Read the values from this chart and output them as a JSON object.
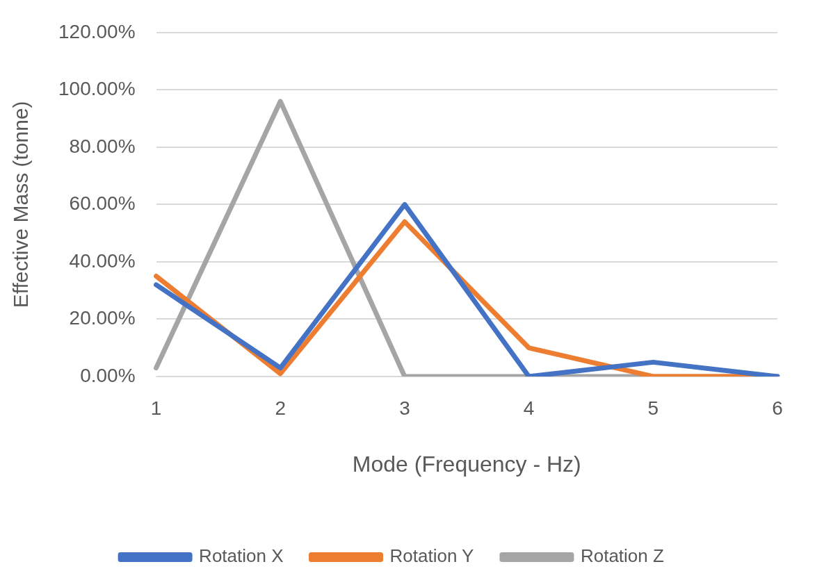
{
  "chart_data": {
    "type": "line",
    "xlabel": "Mode (Frequency - Hz)",
    "ylabel": "Effective Mass (tonne)",
    "categories": [
      "1",
      "2",
      "3",
      "4",
      "5",
      "6"
    ],
    "series": [
      {
        "name": "Rotation X",
        "color": "#4472c4",
        "values": [
          32,
          3,
          60,
          0,
          5,
          0
        ]
      },
      {
        "name": "Rotation Y",
        "color": "#ed7d31",
        "values": [
          35,
          1,
          54,
          10,
          0,
          0
        ]
      },
      {
        "name": "Rotation Z",
        "color": "#a5a5a5",
        "values": [
          3,
          96,
          0,
          0,
          0,
          0
        ]
      }
    ],
    "ylim": [
      0,
      120
    ],
    "yticks": [
      {
        "value": 0,
        "label": "0.00%"
      },
      {
        "value": 20,
        "label": "20.00%"
      },
      {
        "value": 40,
        "label": "40.00%"
      },
      {
        "value": 60,
        "label": "60.00%"
      },
      {
        "value": 80,
        "label": "80.00%"
      },
      {
        "value": 100,
        "label": "100.00%"
      },
      {
        "value": 120,
        "label": "120.00%"
      }
    ],
    "grid": "y",
    "legend": "bottom",
    "marker": "none",
    "line_style": "solid"
  }
}
